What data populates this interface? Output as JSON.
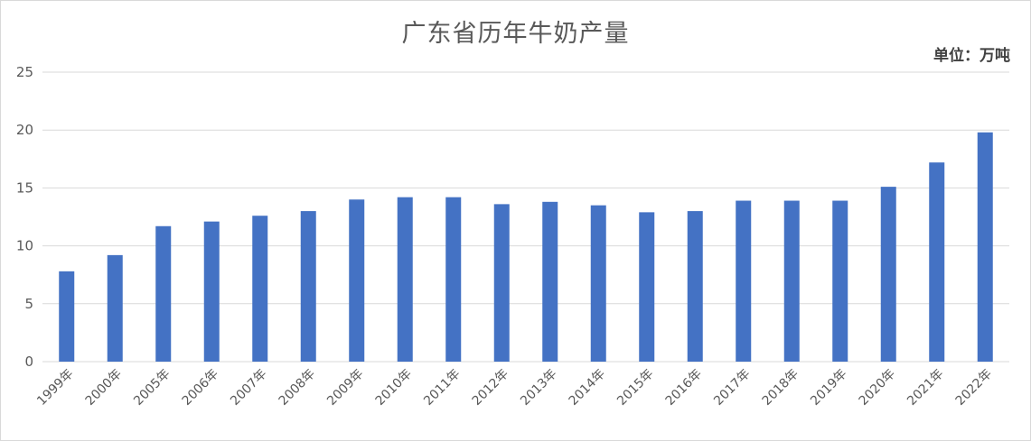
{
  "chart_data": {
    "type": "bar",
    "title": "广东省历年牛奶产量",
    "unit": "单位：万吨",
    "xlabel": "",
    "ylabel": "",
    "ylim": [
      0,
      25
    ],
    "yticks": [
      0,
      5,
      10,
      15,
      20,
      25
    ],
    "grid": true,
    "legend": "none",
    "bar_color": "#4472c4",
    "categories": [
      "1999年",
      "2000年",
      "2005年",
      "2006年",
      "2007年",
      "2008年",
      "2009年",
      "2010年",
      "2011年",
      "2012年",
      "2013年",
      "2014年",
      "2015年",
      "2016年",
      "2017年",
      "2018年",
      "2019年",
      "2020年",
      "2021年",
      "2022年"
    ],
    "values": [
      7.8,
      9.2,
      11.7,
      12.1,
      12.6,
      13.0,
      14.0,
      14.2,
      14.2,
      13.6,
      13.8,
      13.5,
      12.9,
      13.0,
      13.9,
      13.9,
      13.9,
      15.1,
      17.2,
      19.8
    ]
  }
}
